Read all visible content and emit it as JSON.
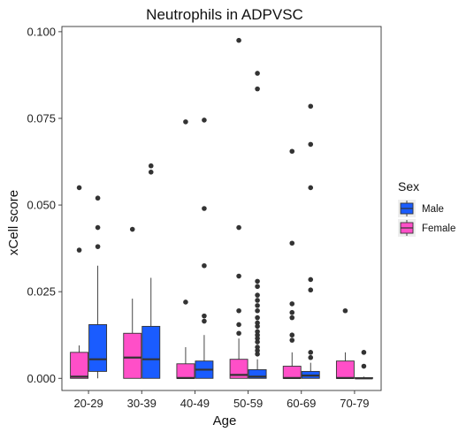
{
  "chart_data": {
    "type": "boxplot",
    "title": "Neutrophils in ADPVSC",
    "xlabel": "Age",
    "ylabel": "xCell score",
    "ylim": [
      -0.0035,
      0.1015
    ],
    "yticks": [
      0.0,
      0.025,
      0.05,
      0.075,
      0.1
    ],
    "ytick_labels": [
      "0.000",
      "0.025",
      "0.050",
      "0.075",
      "0.100"
    ],
    "categories": [
      "20-29",
      "30-39",
      "40-49",
      "50-59",
      "60-69",
      "70-79"
    ],
    "grid": false,
    "legend": {
      "title": "Sex",
      "placement": "right",
      "entries": [
        {
          "name": "Male",
          "color": "#1a5cff"
        },
        {
          "name": "Female",
          "color": "#ff4fc8"
        }
      ]
    },
    "series": [
      {
        "name": "Female",
        "color": "#ff4fc8",
        "boxes": [
          {
            "category": "20-29",
            "min": 0.0,
            "q1": 0.0,
            "median": 0.0005,
            "q3": 0.0075,
            "max": 0.0095,
            "outliers": [
              0.037,
              0.055
            ]
          },
          {
            "category": "30-39",
            "min": 0.0,
            "q1": 0.0,
            "median": 0.006,
            "q3": 0.013,
            "max": 0.023,
            "outliers": [
              0.043
            ]
          },
          {
            "category": "40-49",
            "min": 0.0,
            "q1": 0.0,
            "median": 0.0001,
            "q3": 0.0042,
            "max": 0.009,
            "outliers": [
              0.022,
              0.074
            ]
          },
          {
            "category": "50-59",
            "min": 0.0,
            "q1": 0.0,
            "median": 0.001,
            "q3": 0.0055,
            "max": 0.0115,
            "outliers": [
              0.013,
              0.0155,
              0.0195,
              0.0295,
              0.0435,
              0.0975
            ]
          },
          {
            "category": "60-69",
            "min": 0.0,
            "q1": 0.0,
            "median": 0.0001,
            "q3": 0.0035,
            "max": 0.0075,
            "outliers": [
              0.011,
              0.0125,
              0.0175,
              0.019,
              0.0215,
              0.039,
              0.0655
            ]
          },
          {
            "category": "70-79",
            "min": 0.0,
            "q1": 0.0,
            "median": 0.0001,
            "q3": 0.005,
            "max": 0.0075,
            "outliers": [
              0.0195
            ]
          }
        ]
      },
      {
        "name": "Male",
        "color": "#1a5cff",
        "boxes": [
          {
            "category": "20-29",
            "min": 0.0,
            "q1": 0.002,
            "median": 0.0055,
            "q3": 0.0155,
            "max": 0.0325,
            "outliers": [
              0.038,
              0.0435,
              0.052
            ]
          },
          {
            "category": "30-39",
            "min": 0.0,
            "q1": 0.0,
            "median": 0.0055,
            "q3": 0.015,
            "max": 0.029,
            "outliers": [
              0.0595,
              0.0613
            ]
          },
          {
            "category": "40-49",
            "min": 0.0,
            "q1": 0.0,
            "median": 0.0025,
            "q3": 0.005,
            "max": 0.0125,
            "outliers": [
              0.0165,
              0.018,
              0.0325,
              0.049,
              0.0745
            ]
          },
          {
            "category": "50-59",
            "min": 0.0,
            "q1": 0.0,
            "median": 0.0005,
            "q3": 0.0025,
            "max": 0.0055,
            "outliers": [
              0.007,
              0.008,
              0.009,
              0.0105,
              0.0115,
              0.0125,
              0.0135,
              0.015,
              0.016,
              0.0175,
              0.0195,
              0.021,
              0.0225,
              0.024,
              0.0265,
              0.028,
              0.0835,
              0.088
            ]
          },
          {
            "category": "60-69",
            "min": 0.0,
            "q1": 0.0,
            "median": 0.0008,
            "q3": 0.002,
            "max": 0.0045,
            "outliers": [
              0.006,
              0.0075,
              0.0255,
              0.0285,
              0.055,
              0.0675,
              0.0785
            ]
          },
          {
            "category": "70-79",
            "min": 0.0,
            "q1": 0.0,
            "median": 0.0,
            "q3": 0.0002,
            "max": 0.0005,
            "outliers": [
              0.0035,
              0.0075
            ]
          }
        ]
      }
    ]
  }
}
